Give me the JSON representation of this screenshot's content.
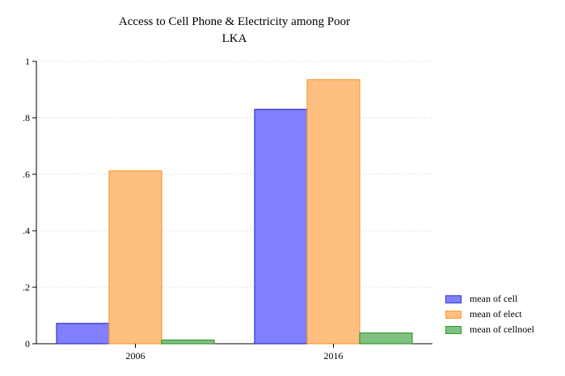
{
  "chart_data": {
    "type": "bar",
    "title": "Access to Cell Phone & Electricity among Poor",
    "subtitle": "LKA",
    "categories": [
      "2006",
      "2016"
    ],
    "series": [
      {
        "name": "mean of cell",
        "values": [
          0.072,
          0.83
        ],
        "color": "#8080ff",
        "stroke": "#3333cc"
      },
      {
        "name": "mean of elect",
        "values": [
          0.612,
          0.935
        ],
        "color": "#ffbf80",
        "stroke": "#ff9933"
      },
      {
        "name": "mean of cellnoel",
        "values": [
          0.013,
          0.038
        ],
        "color": "#80c080",
        "stroke": "#339933"
      }
    ],
    "ylim": [
      0,
      1
    ],
    "yticks": [
      0,
      0.2,
      0.4,
      0.6,
      0.8,
      1
    ],
    "ytick_labels": [
      "0",
      ".2",
      ".4",
      ".6",
      ".8",
      "1"
    ],
    "grid": true,
    "legend_position": "bottom-right"
  }
}
